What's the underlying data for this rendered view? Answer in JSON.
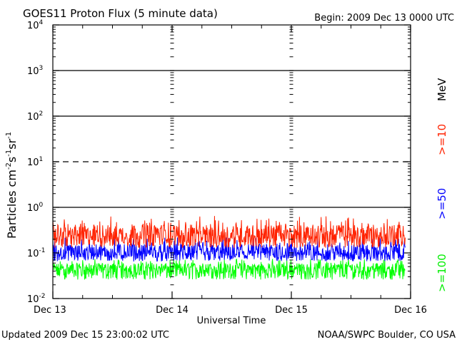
{
  "chart_data": {
    "type": "line",
    "title": "GOES11 Proton Flux (5 minute data)",
    "begin_label": "Begin: 2009 Dec 13 0000 UTC",
    "xlabel": "Universal Time",
    "ylabel_base": "Particles cm",
    "ylabel_units": [
      {
        "base": "",
        "sup": "-2"
      },
      {
        "base": "s",
        "sup": "-1"
      },
      {
        "base": "sr",
        "sup": "-1"
      }
    ],
    "x_ticks": [
      "Dec 13",
      "Dec 14",
      "Dec 15",
      "Dec 16"
    ],
    "x_range_days": [
      0,
      3
    ],
    "y_scale": "log",
    "y_range_log10": [
      -2,
      4
    ],
    "y_ticks": [
      {
        "base": "10",
        "exp": "-2",
        "log": -2
      },
      {
        "base": "10",
        "exp": "-1",
        "log": -1
      },
      {
        "base": "10",
        "exp": "0",
        "log": 0
      },
      {
        "base": "10",
        "exp": "1",
        "log": 1
      },
      {
        "base": "10",
        "exp": "2",
        "log": 2
      },
      {
        "base": "10",
        "exp": "3",
        "log": 3
      },
      {
        "base": "10",
        "exp": "4",
        "log": 4
      }
    ],
    "thresholds": [
      {
        "log": 0,
        "style": "solid"
      },
      {
        "log": 1,
        "style": "dashed"
      },
      {
        "log": 2,
        "style": "solid"
      },
      {
        "log": 3,
        "style": "solid"
      }
    ],
    "series": [
      {
        "name": ">=10",
        "color": "#ff2200",
        "label_pos": "upper",
        "min_flux": 0.13,
        "max_flux": 0.65,
        "typical_flux": 0.24
      },
      {
        "name": ">=50",
        "color": "#0000ff",
        "label_pos": "middle",
        "min_flux": 0.065,
        "max_flux": 0.22,
        "typical_flux": 0.1
      },
      {
        "name": ">=100",
        "color": "#00ff00",
        "label_pos": "lower",
        "min_flux": 0.026,
        "max_flux": 0.075,
        "typical_flux": 0.045
      }
    ],
    "unit_label": "MeV"
  },
  "footer": {
    "updated": "Updated 2009 Dec 15 23:00:02 UTC",
    "credit": "NOAA/SWPC Boulder, CO USA"
  }
}
